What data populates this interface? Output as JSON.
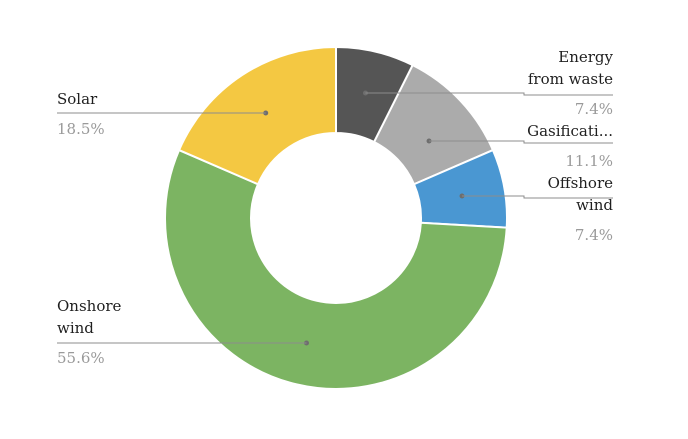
{
  "chart_data": {
    "type": "pie",
    "title": "",
    "categories": [
      "Energy from waste",
      "Gasification",
      "Offshore wind",
      "Onshore wind",
      "Solar"
    ],
    "values": [
      7.4,
      11.1,
      7.4,
      55.6,
      18.5
    ],
    "label_lines": [
      [
        "Energy",
        "from waste"
      ],
      [
        "Gasificati..."
      ],
      [
        "Offshore",
        "wind"
      ],
      [
        "Onshore",
        "wind"
      ],
      [
        "Solar"
      ]
    ],
    "percent_labels": [
      "7.4%",
      "11.1%",
      "7.4%",
      "55.6%",
      "18.5%"
    ],
    "colors": [
      "#555555",
      "#ababab",
      "#4a97d2",
      "#7cb462",
      "#f4c842"
    ],
    "donut": true,
    "start": "top",
    "direction": "clockwise",
    "legend": "none"
  }
}
